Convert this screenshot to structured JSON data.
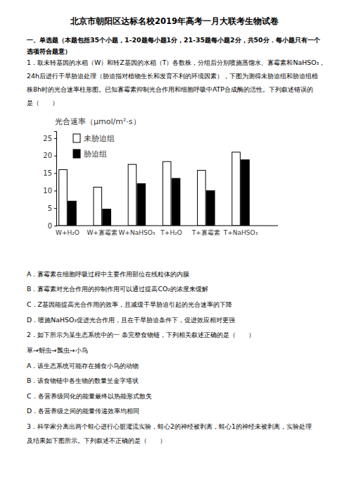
{
  "title": "北京市朝阳区达标名校2019年高考一月大联考生物试卷",
  "section": [
    "一、单选题（本题包括35个小题，1-20题每小题1分，21-35题每小题2分，共50分．每小题只有一个",
    "选项符合题意）"
  ],
  "questions": [
    {
      "stem": [
        "1．取未转基因的水稻（W）和转Z基因的水稻（T）各数株，分组后分别喷施蒸馏水、寡霉素和NaHSO₃，",
        "24h后进行干旱胁迫处理（胁迫指对植物生长和发育不利的环境因素），下图为测得未胁迫组和胁迫组植",
        "株8h时的光合速率柱形图。已知寡霉素抑制光合作用和细胞呼吸中ATP合成酶的活性。下列叙述错误的",
        "是（　　）"
      ],
      "options": [
        "A．寡霉素在细胞呼吸过程中主要作用部位在线粒体的内膜",
        "B．寡霉素对光合作用的抑制作用可以通过提高CO₂的浓度来缓解",
        "C．Z基因能提高光合作用的效率，且减缓干旱胁迫引起的光合速率的下降",
        "D．喷施NaHSO₃促进光合作用，且在干旱胁迫条件下，促进效应相对更强"
      ]
    },
    {
      "stem": [
        "2．如下所示为某生态系统中的一 条完整食物链，下列相关叙述正确的是（　　）"
      ],
      "food_chain": "草→蚜虫→瓢虫→小鸟",
      "options": [
        "A．该生态系统可能存在捕食小鸟的动物",
        "B．该食物链中各生物的数量呈金字塔状",
        "C．各营养级同化的能量最终以热能形式散失",
        "D．各营养级之间的能量传递效率均相同"
      ]
    },
    {
      "stem": [
        "3．科学家分离出两个蛙心进行心脏灌流实验，蛙心2的神经被剥离，蛙心1的神经未被剥离，实验处理",
        "及结果如下图所示。下列叙述不正确的是（　　）"
      ]
    }
  ],
  "chart_data": {
    "type": "bar",
    "ylabel": "光合速率（μmol/m²·s）",
    "categories": [
      "W+H₂O",
      "W+寡霉素",
      "W+NaHSO₃",
      "T+H₂O",
      "T+寡霉素",
      "T+NaHSO₃"
    ],
    "series": [
      {
        "name": "未胁迫组",
        "color": "#ffffff",
        "values": [
          16,
          11,
          17.5,
          18.3,
          15.8,
          21
        ]
      },
      {
        "name": "胁迫组",
        "color": "#000000",
        "values": [
          7,
          4.7,
          12,
          13.5,
          10,
          18.8
        ]
      }
    ],
    "ylim": [
      0,
      27
    ],
    "yticks": [
      0,
      5,
      10,
      15,
      20,
      25
    ],
    "grid": false,
    "legend": "upper left"
  }
}
